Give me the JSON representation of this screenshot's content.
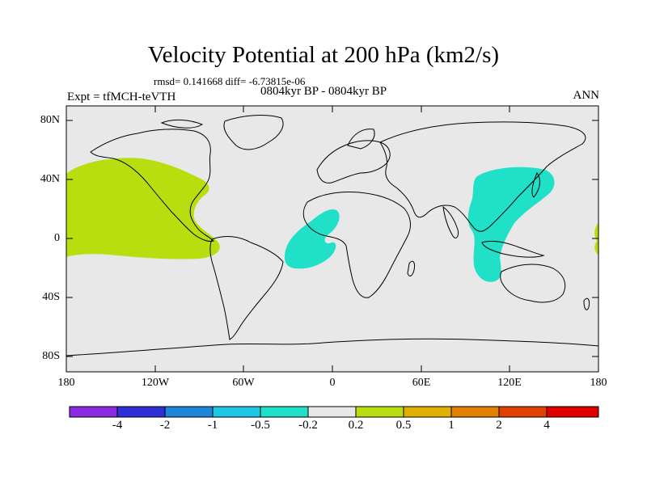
{
  "title": "Velocity Potential at 200 hPa (km2/s)",
  "stats": "rmsd= 0.141668 diff= -6.73815e-06",
  "expt": "Expt = tfMCH-teVTH",
  "period": "0804kyr BP - 0804kyr BP",
  "season": "ANN",
  "lat_labels": [
    "80N",
    "40N",
    "0",
    "40S",
    "80S"
  ],
  "lon_labels": [
    "180",
    "120W",
    "60W",
    "0",
    "60E",
    "120E",
    "180"
  ],
  "colorbar": {
    "labels": [
      "-4",
      "-2",
      "-1",
      "-0.5",
      "-0.2",
      "0.2",
      "0.5",
      "1",
      "2",
      "4"
    ],
    "colors": [
      "#8a2be2",
      "#2f2fd6",
      "#1e86d8",
      "#1ec8e6",
      "#20e0c8",
      "#e8e8e8",
      "#b8de10",
      "#e0b000",
      "#e08000",
      "#e04000",
      "#e00000"
    ]
  },
  "map_colors": {
    "background": "#e8e8e8",
    "positive": "#b8de10",
    "negative": "#20e0c8",
    "coast": "#000000"
  }
}
